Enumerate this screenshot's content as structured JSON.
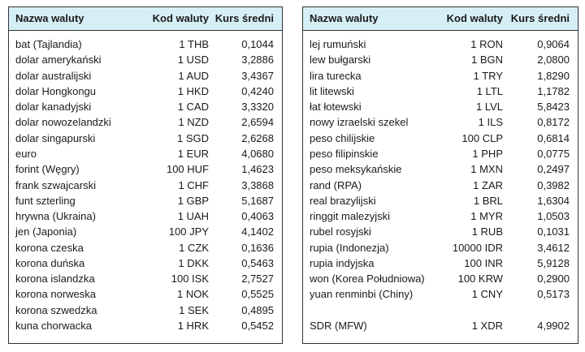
{
  "tables": [
    {
      "headers": [
        "Nazwa waluty",
        "Kod waluty",
        "Kurs średni"
      ],
      "rows": [
        [
          "bat (Tajlandia)",
          "1 THB",
          "0,1044"
        ],
        [
          "dolar amerykański",
          "1 USD",
          "3,2886"
        ],
        [
          "dolar australijski",
          "1 AUD",
          "3,4367"
        ],
        [
          "dolar Hongkongu",
          "1 HKD",
          "0,4240"
        ],
        [
          "dolar kanadyjski",
          "1 CAD",
          "3,3320"
        ],
        [
          "dolar nowozelandzki",
          "1 NZD",
          "2,6594"
        ],
        [
          "dolar singapurski",
          "1 SGD",
          "2,6268"
        ],
        [
          "euro",
          "1 EUR",
          "4,0680"
        ],
        [
          "forint (Węgry)",
          "100 HUF",
          "1,4623"
        ],
        [
          "frank szwajcarski",
          "1 CHF",
          "3,3868"
        ],
        [
          "funt szterling",
          "1 GBP",
          "5,1687"
        ],
        [
          "hrywna (Ukraina)",
          "1 UAH",
          "0,4063"
        ],
        [
          "jen (Japonia)",
          "100 JPY",
          "4,1402"
        ],
        [
          "korona czeska",
          "1 CZK",
          "0,1636"
        ],
        [
          "korona duńska",
          "1 DKK",
          "0,5463"
        ],
        [
          "korona islandzka",
          "100 ISK",
          "2,7527"
        ],
        [
          "korona norweska",
          "1 NOK",
          "0,5525"
        ],
        [
          "korona szwedzka",
          "1 SEK",
          "0,4895"
        ],
        [
          "kuna chorwacka",
          "1 HRK",
          "0,5452"
        ]
      ]
    },
    {
      "headers": [
        "Nazwa waluty",
        "Kod waluty",
        "Kurs średni"
      ],
      "rows": [
        [
          "lej rumuński",
          "1 RON",
          "0,9064"
        ],
        [
          "lew bułgarski",
          "1 BGN",
          "2,0800"
        ],
        [
          "lira turecka",
          "1 TRY",
          "1,8290"
        ],
        [
          "lit litewski",
          "1 LTL",
          "1,1782"
        ],
        [
          "łat łotewski",
          "1 LVL",
          "5,8423"
        ],
        [
          "nowy izraelski szekel",
          "1 ILS",
          "0,8172"
        ],
        [
          "peso chilijskie",
          "100 CLP",
          "0,6814"
        ],
        [
          "peso filipinskie",
          "1 PHP",
          "0,0775"
        ],
        [
          "peso meksykańskie",
          "1 MXN",
          "0,2497"
        ],
        [
          "rand (RPA)",
          "1 ZAR",
          "0,3982"
        ],
        [
          "real brazylijski",
          "1 BRL",
          "1,6304"
        ],
        [
          "ringgit malezyjski",
          "1 MYR",
          "1,0503"
        ],
        [
          "rubel rosyjski",
          "1 RUB",
          "0,1031"
        ],
        [
          "rupia (Indonezja)",
          "10000 IDR",
          "3,4612"
        ],
        [
          "rupia indyjska",
          "100 INR",
          "5,9128"
        ],
        [
          "won (Korea Południowa)",
          "100 KRW",
          "0,2900"
        ],
        [
          "yuan renminbi (Chiny)",
          "1 CNY",
          "0,5173"
        ]
      ],
      "footer_row": [
        "SDR (MFW)",
        "1 XDR",
        "4,9902"
      ]
    }
  ]
}
